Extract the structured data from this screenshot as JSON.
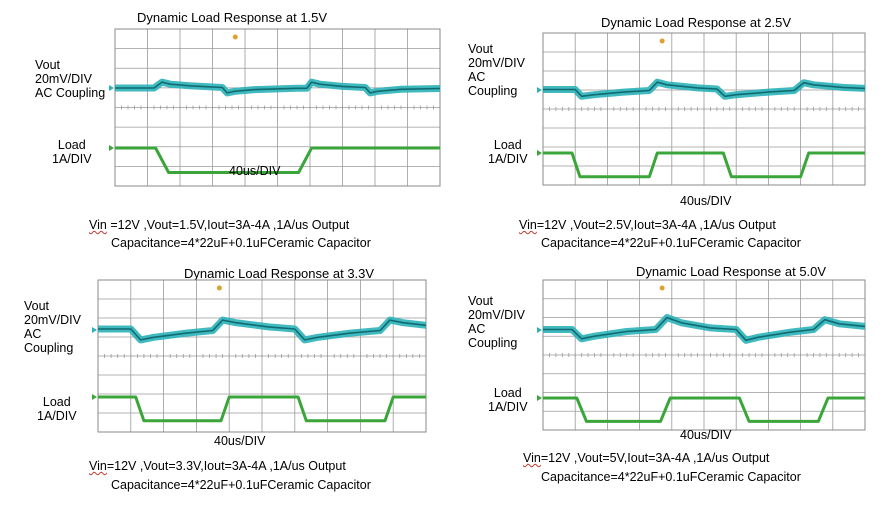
{
  "colors": {
    "vout": "#2bb3b8",
    "vout_dark": "#0f6b72",
    "load": "#3aa63a",
    "grid": "#9a9a9a",
    "frame": "#8a8a8a",
    "marker": "#e0a030"
  },
  "chart_data": [
    {
      "type": "line",
      "title": "Dynamic Load Response at 1.5V",
      "vout_label": [
        "Vout",
        "20mV/DIV",
        "AC Coupling"
      ],
      "load_label": [
        "Load",
        "1A/DIV"
      ],
      "time_div": "40us/DIV",
      "caption_vin": "Vin",
      "caption_line1_rest": " =12V ,Vout=1.5V,Iout=3A-4A ,1A/us Output",
      "caption_line2": "Capacitance=4*22uF+0.1uFCeramic Capacitor",
      "x_divisions": 10,
      "series": [
        {
          "name": "Vout",
          "values": [
            [
              0,
              0
            ],
            [
              1.2,
              0
            ],
            [
              1.45,
              0.55
            ],
            [
              1.7,
              0.35
            ],
            [
              2.3,
              0.2
            ],
            [
              3.3,
              0.05
            ],
            [
              3.45,
              -0.45
            ],
            [
              3.7,
              -0.3
            ],
            [
              4.3,
              -0.15
            ],
            [
              5.6,
              -0.03
            ],
            [
              5.9,
              -0.03
            ],
            [
              6.05,
              0.55
            ],
            [
              6.3,
              0.35
            ],
            [
              7.0,
              0.15
            ],
            [
              7.7,
              0.05
            ],
            [
              7.85,
              -0.45
            ],
            [
              8.1,
              -0.3
            ],
            [
              8.8,
              -0.12
            ],
            [
              10,
              -0.05
            ]
          ]
        },
        {
          "name": "Load",
          "values": [
            [
              0,
              0
            ],
            [
              1.25,
              0
            ],
            [
              1.65,
              -1
            ],
            [
              5.65,
              -1
            ],
            [
              6.05,
              0
            ],
            [
              10,
              0
            ]
          ]
        }
      ]
    },
    {
      "type": "line",
      "title": "Dynamic Load Response at 2.5V",
      "vout_label": [
        "Vout",
        "20mV/DIV",
        "AC",
        "Coupling"
      ],
      "load_label": [
        "Load",
        "1A/DIV"
      ],
      "time_div": "40us/DIV",
      "caption_vin": "Vin",
      "caption_line1_rest": "=12V ,Vout=2.5V,Iout=3A-4A ,1A/us Output",
      "caption_line2": "Capacitance=4*22uF+0.1uFCeramic Capacitor",
      "x_divisions": 10,
      "series": [
        {
          "name": "Vout",
          "values": [
            [
              0,
              0.05
            ],
            [
              1.0,
              0.05
            ],
            [
              1.2,
              -0.6
            ],
            [
              1.6,
              -0.45
            ],
            [
              2.5,
              -0.2
            ],
            [
              3.3,
              -0.05
            ],
            [
              3.55,
              0.75
            ],
            [
              3.85,
              0.5
            ],
            [
              4.8,
              0.2
            ],
            [
              5.4,
              0.1
            ],
            [
              5.65,
              -0.6
            ],
            [
              6.0,
              -0.45
            ],
            [
              7.0,
              -0.2
            ],
            [
              7.8,
              -0.05
            ],
            [
              8.1,
              0.7
            ],
            [
              8.4,
              0.5
            ],
            [
              9.3,
              0.25
            ],
            [
              10,
              0.15
            ]
          ]
        },
        {
          "name": "Load",
          "values": [
            [
              0,
              0
            ],
            [
              0.9,
              0
            ],
            [
              1.15,
              -1
            ],
            [
              3.3,
              -1
            ],
            [
              3.55,
              0
            ],
            [
              5.6,
              0
            ],
            [
              5.85,
              -1
            ],
            [
              8.0,
              -1
            ],
            [
              8.25,
              0
            ],
            [
              10,
              0
            ]
          ]
        }
      ]
    },
    {
      "type": "line",
      "title": "Dynamic Load Response at 3.3V",
      "vout_label": [
        "Vout",
        "20mV/DIV",
        "AC",
        "Coupling"
      ],
      "load_label": [
        "Load",
        "1A/DIV"
      ],
      "time_div": "40us/DIV",
      "caption_vin": "Vin",
      "caption_line1_rest": "=12V ,Vout=3.3V,Iout=3A-4A ,1A/us Output",
      "caption_line2": "Capacitance=4*22uF+0.1uFCeramic Capacitor",
      "x_divisions": 10,
      "series": [
        {
          "name": "Vout",
          "values": [
            [
              0,
              0.1
            ],
            [
              1.0,
              0.1
            ],
            [
              1.3,
              -0.95
            ],
            [
              1.7,
              -0.7
            ],
            [
              2.7,
              -0.3
            ],
            [
              3.5,
              -0.05
            ],
            [
              3.8,
              0.95
            ],
            [
              4.2,
              0.7
            ],
            [
              5.2,
              0.3
            ],
            [
              6.0,
              0.1
            ],
            [
              6.3,
              -0.95
            ],
            [
              6.7,
              -0.7
            ],
            [
              7.7,
              -0.3
            ],
            [
              8.6,
              -0.05
            ],
            [
              8.9,
              0.95
            ],
            [
              9.3,
              0.7
            ],
            [
              10,
              0.45
            ]
          ]
        },
        {
          "name": "Load",
          "values": [
            [
              0,
              0
            ],
            [
              1.15,
              0
            ],
            [
              1.4,
              -1
            ],
            [
              3.75,
              -1
            ],
            [
              4.0,
              0
            ],
            [
              6.1,
              0
            ],
            [
              6.35,
              -1
            ],
            [
              8.75,
              -1
            ],
            [
              9.0,
              0
            ],
            [
              10,
              0
            ]
          ]
        }
      ]
    },
    {
      "type": "line",
      "title": "Dynamic Load Response at 5.0V",
      "vout_label": [
        "Vout",
        "20mV/DIV",
        "AC",
        "Coupling"
      ],
      "load_label": [
        "Load",
        "1A/DIV"
      ],
      "time_div": "40us/DIV",
      "caption_vin": "Vin",
      "caption_line1_rest": "=12V ,Vout=5V,Iout=3A-4A ,1A/us Output",
      "caption_line2": "Capacitance=4*22uF+0.1uFCeramic Capacitor",
      "x_divisions": 10,
      "series": [
        {
          "name": "Vout",
          "values": [
            [
              0,
              0.05
            ],
            [
              0.9,
              0.05
            ],
            [
              1.2,
              -0.85
            ],
            [
              1.6,
              -0.6
            ],
            [
              2.6,
              -0.15
            ],
            [
              3.5,
              0.05
            ],
            [
              3.85,
              1.2
            ],
            [
              4.3,
              0.7
            ],
            [
              5.2,
              0.2
            ],
            [
              6.0,
              0.05
            ],
            [
              6.3,
              -1.0
            ],
            [
              6.7,
              -0.7
            ],
            [
              7.7,
              -0.2
            ],
            [
              8.4,
              0.05
            ],
            [
              8.75,
              1.0
            ],
            [
              9.2,
              0.6
            ],
            [
              10,
              0.35
            ]
          ]
        },
        {
          "name": "Load",
          "values": [
            [
              0,
              0
            ],
            [
              1.05,
              0
            ],
            [
              1.35,
              -1
            ],
            [
              3.65,
              -1
            ],
            [
              3.95,
              0
            ],
            [
              6.1,
              0
            ],
            [
              6.4,
              -1
            ],
            [
              8.55,
              -1
            ],
            [
              8.85,
              0
            ],
            [
              10,
              0
            ]
          ]
        }
      ]
    }
  ]
}
